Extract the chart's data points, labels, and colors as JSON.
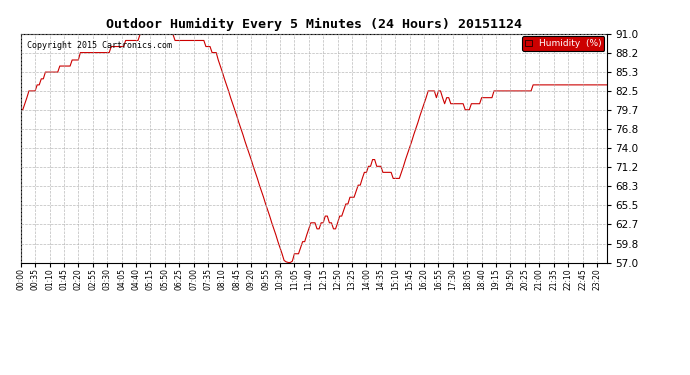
{
  "title": "Outdoor Humidity Every 5 Minutes (24 Hours) 20151124",
  "copyright": "Copyright 2015 Cartronics.com",
  "legend_label": "Humidity  (%)",
  "legend_bg": "#cc0000",
  "line_color": "#cc0000",
  "bg_color": "#ffffff",
  "plot_bg": "#ffffff",
  "grid_color": "#aaaaaa",
  "ylim": [
    57.0,
    91.0
  ],
  "yticks": [
    57.0,
    59.8,
    62.7,
    65.5,
    68.3,
    71.2,
    74.0,
    76.8,
    79.7,
    82.5,
    85.3,
    88.2,
    91.0
  ],
  "x_labels": [
    "00:00",
    "00:05",
    "00:10",
    "00:15",
    "00:20",
    "00:25",
    "00:30",
    "00:35",
    "00:40",
    "00:45",
    "00:50",
    "00:55",
    "01:00",
    "01:05",
    "01:10",
    "01:15",
    "01:20",
    "01:25",
    "01:30",
    "01:35",
    "01:40",
    "01:45",
    "01:50",
    "01:55",
    "02:00",
    "02:05",
    "02:10",
    "02:15",
    "02:20",
    "02:25",
    "02:30",
    "02:35",
    "02:40",
    "02:45",
    "02:50",
    "02:55",
    "03:00",
    "03:05",
    "03:10",
    "03:15",
    "03:20",
    "03:25",
    "03:30",
    "03:35",
    "03:40",
    "03:45",
    "03:50",
    "03:55",
    "04:00",
    "04:05",
    "04:10",
    "04:15",
    "04:20",
    "04:25",
    "04:30",
    "04:35",
    "04:40",
    "04:45",
    "04:50",
    "04:55",
    "05:00",
    "05:05",
    "05:10",
    "05:15",
    "05:20",
    "05:25",
    "05:30",
    "05:35",
    "05:40",
    "05:45",
    "05:50",
    "05:55",
    "06:00",
    "06:05",
    "06:10",
    "06:15",
    "06:20",
    "06:25",
    "06:30",
    "06:35",
    "06:40",
    "06:45",
    "06:50",
    "06:55",
    "07:00",
    "07:05",
    "07:10",
    "07:15",
    "07:20",
    "07:25",
    "07:30",
    "07:35",
    "07:40",
    "07:45",
    "07:50",
    "07:55",
    "08:00",
    "08:05",
    "08:10",
    "08:15",
    "08:20",
    "08:25",
    "08:30",
    "08:35",
    "08:40",
    "08:45",
    "08:50",
    "08:55",
    "09:00",
    "09:05",
    "09:10",
    "09:15",
    "09:20",
    "09:25",
    "09:30",
    "09:35",
    "09:40",
    "09:45",
    "09:50",
    "09:55",
    "10:00",
    "10:05",
    "10:10",
    "10:15",
    "10:20",
    "10:25",
    "10:30",
    "10:35",
    "10:40",
    "10:45",
    "10:50",
    "10:55",
    "11:00",
    "11:05",
    "11:10",
    "11:15",
    "11:20",
    "11:25",
    "11:30",
    "11:35",
    "11:40",
    "11:45",
    "11:50",
    "11:55",
    "12:00",
    "12:05",
    "12:10",
    "12:15",
    "12:20",
    "12:25",
    "12:30",
    "12:35",
    "12:40",
    "12:45",
    "12:50",
    "12:55",
    "13:00",
    "13:05",
    "13:10",
    "13:15",
    "13:20",
    "13:25",
    "13:30",
    "13:35",
    "13:40",
    "13:45",
    "13:50",
    "13:55",
    "14:00",
    "14:05",
    "14:10",
    "14:15",
    "14:20",
    "14:25",
    "14:30",
    "14:35",
    "14:40",
    "14:45",
    "14:50",
    "14:55",
    "15:00",
    "15:05",
    "15:10",
    "15:15",
    "15:20",
    "15:25",
    "15:30",
    "15:35",
    "15:40",
    "15:45",
    "15:50",
    "15:55",
    "16:00",
    "16:05",
    "16:10",
    "16:15",
    "16:20",
    "16:25",
    "16:30",
    "16:35",
    "16:40",
    "16:45",
    "16:50",
    "16:55",
    "17:00",
    "17:05",
    "17:10",
    "17:15",
    "17:20",
    "17:25",
    "17:30",
    "17:35",
    "17:40",
    "17:45",
    "17:50",
    "17:55",
    "18:00",
    "18:05",
    "18:10",
    "18:15",
    "18:20",
    "18:25",
    "18:30",
    "18:35",
    "18:40",
    "18:45",
    "18:50",
    "18:55",
    "19:00",
    "19:05",
    "19:10",
    "19:15",
    "19:20",
    "19:25",
    "19:30",
    "19:35",
    "19:40",
    "19:45",
    "19:50",
    "19:55",
    "20:00",
    "20:05",
    "20:10",
    "20:15",
    "20:20",
    "20:25",
    "20:30",
    "20:35",
    "20:40",
    "20:45",
    "20:50",
    "20:55",
    "21:00",
    "21:05",
    "21:10",
    "21:15",
    "21:20",
    "21:25",
    "21:30",
    "21:35",
    "21:40",
    "21:45",
    "21:50",
    "21:55",
    "22:00",
    "22:05",
    "22:10",
    "22:15",
    "22:20",
    "22:25",
    "22:30",
    "22:35",
    "22:40",
    "22:45",
    "22:50",
    "22:55",
    "23:00",
    "23:05",
    "23:10",
    "23:15",
    "23:20",
    "23:25",
    "23:30",
    "23:35",
    "23:40",
    "23:45",
    "23:50",
    "23:55"
  ],
  "shown_x_labels": [
    "00:00",
    "00:35",
    "01:10",
    "01:45",
    "02:20",
    "02:55",
    "03:30",
    "04:05",
    "04:40",
    "05:15",
    "05:50",
    "06:25",
    "07:00",
    "07:35",
    "08:10",
    "08:45",
    "09:20",
    "09:55",
    "10:30",
    "11:05",
    "11:40",
    "12:15",
    "12:50",
    "13:25",
    "14:00",
    "14:35",
    "15:10",
    "15:45",
    "16:20",
    "16:55",
    "17:30",
    "18:05",
    "18:40",
    "19:15",
    "19:50",
    "20:25",
    "21:00",
    "21:35",
    "22:10",
    "22:45",
    "23:20",
    "23:55"
  ],
  "humidity_data": [
    79.7,
    79.7,
    80.6,
    81.5,
    82.5,
    82.5,
    82.5,
    82.5,
    83.4,
    83.4,
    84.3,
    84.3,
    85.3,
    85.3,
    85.3,
    85.3,
    85.3,
    85.3,
    85.3,
    86.2,
    86.2,
    86.2,
    86.2,
    86.2,
    86.2,
    87.1,
    87.1,
    87.1,
    87.1,
    88.2,
    88.2,
    88.2,
    88.2,
    88.2,
    88.2,
    88.2,
    88.2,
    88.2,
    88.2,
    88.2,
    88.2,
    88.2,
    88.2,
    88.2,
    89.1,
    89.1,
    89.1,
    89.1,
    89.1,
    89.1,
    89.1,
    90.0,
    90.0,
    90.0,
    90.0,
    90.0,
    90.0,
    90.0,
    90.9,
    90.9,
    90.9,
    90.9,
    90.9,
    90.9,
    90.9,
    90.9,
    90.9,
    90.9,
    90.9,
    90.9,
    90.9,
    90.9,
    90.9,
    90.9,
    90.9,
    90.0,
    90.0,
    90.0,
    90.0,
    90.0,
    90.0,
    90.0,
    90.0,
    90.0,
    90.0,
    90.0,
    90.0,
    90.0,
    90.0,
    90.0,
    89.1,
    89.1,
    89.1,
    88.2,
    88.2,
    88.2,
    87.1,
    86.2,
    85.3,
    84.3,
    83.4,
    82.5,
    81.5,
    80.6,
    79.7,
    78.8,
    77.8,
    76.9,
    76.0,
    75.0,
    74.1,
    73.2,
    72.3,
    71.3,
    70.4,
    69.5,
    68.5,
    67.6,
    66.7,
    65.7,
    64.8,
    63.9,
    62.9,
    62.0,
    61.1,
    60.1,
    59.2,
    58.3,
    57.3,
    57.1,
    57.0,
    57.0,
    57.2,
    58.3,
    58.3,
    58.3,
    59.2,
    60.1,
    60.1,
    61.1,
    62.0,
    62.9,
    62.9,
    62.9,
    62.0,
    62.0,
    62.9,
    62.9,
    63.9,
    63.9,
    62.9,
    62.9,
    62.0,
    62.0,
    62.9,
    63.9,
    63.9,
    64.8,
    65.7,
    65.7,
    66.7,
    66.7,
    66.7,
    67.6,
    68.5,
    68.5,
    69.5,
    70.4,
    70.4,
    71.3,
    71.3,
    72.3,
    72.3,
    71.3,
    71.3,
    71.3,
    70.4,
    70.4,
    70.4,
    70.4,
    70.4,
    69.5,
    69.5,
    69.5,
    69.5,
    70.4,
    71.3,
    72.3,
    73.2,
    74.1,
    75.0,
    76.0,
    76.9,
    77.8,
    78.8,
    79.7,
    80.6,
    81.5,
    82.5,
    82.5,
    82.5,
    82.5,
    81.5,
    82.5,
    82.5,
    81.5,
    80.6,
    81.5,
    81.5,
    80.6,
    80.6,
    80.6,
    80.6,
    80.6,
    80.6,
    80.6,
    79.7,
    79.7,
    79.7,
    80.6,
    80.6,
    80.6,
    80.6,
    80.6,
    81.5,
    81.5,
    81.5,
    81.5,
    81.5,
    81.5,
    82.5,
    82.5,
    82.5,
    82.5,
    82.5,
    82.5,
    82.5,
    82.5,
    82.5,
    82.5,
    82.5,
    82.5,
    82.5,
    82.5,
    82.5,
    82.5,
    82.5,
    82.5,
    82.5,
    83.4,
    83.4,
    83.4,
    83.4,
    83.4,
    83.4,
    83.4,
    83.4,
    83.4,
    83.4,
    83.4,
    83.4,
    83.4,
    83.4,
    83.4,
    83.4,
    83.4,
    83.4,
    83.4,
    83.4,
    83.4,
    83.4,
    83.4,
    83.4,
    83.4,
    83.4,
    83.4,
    83.4,
    83.4,
    83.4,
    83.4,
    83.4,
    83.4,
    83.4,
    83.4,
    83.4,
    83.4
  ]
}
